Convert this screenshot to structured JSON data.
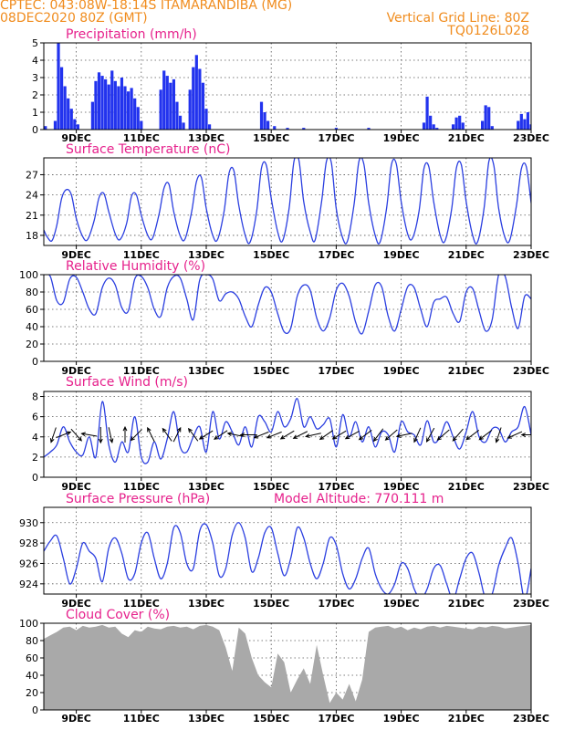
{
  "header": {
    "line1_left": "CPTEC:   043:08W-18:14S   ITAMARANDIBA (MG)",
    "line2_left": "08DEC2020 80Z (GMT)",
    "line1_right": "Vertical Grid Line: 80Z",
    "line2_right": "TQ0126L028"
  },
  "colors": {
    "header": "#f08c1e",
    "panel_title": "#e6218c",
    "series_line": "#2b3fe0",
    "precip_bar": "#2233ee",
    "cloud_fill": "#a9a9a9"
  },
  "x_axis": {
    "range_days": [
      0,
      15
    ],
    "tick_labels": [
      "9DEC",
      "11DEC",
      "13DEC",
      "15DEC",
      "17DEC",
      "19DEC",
      "21DEC",
      "23DEC"
    ],
    "tick_positions_days": [
      1,
      3,
      5,
      7,
      9,
      11,
      13,
      15
    ]
  },
  "chart_data": [
    {
      "id": "precip",
      "type": "bar",
      "title": "Precipitation (mm/h)",
      "ylim": [
        0,
        5
      ],
      "yticks": [
        0,
        1,
        2,
        3,
        4,
        5
      ],
      "color": "#2233ee",
      "x": [
        0.05,
        0.35,
        0.45,
        0.55,
        0.65,
        0.75,
        0.85,
        0.95,
        1.05,
        1.5,
        1.6,
        1.7,
        1.8,
        1.9,
        2.0,
        2.1,
        2.2,
        2.3,
        2.4,
        2.5,
        2.6,
        2.7,
        2.8,
        2.9,
        3.0,
        3.6,
        3.7,
        3.8,
        3.9,
        4.0,
        4.1,
        4.2,
        4.3,
        4.5,
        4.6,
        4.7,
        4.8,
        4.9,
        5.0,
        5.1,
        6.7,
        6.8,
        6.9,
        7.1,
        7.5,
        8.0,
        9.0,
        10.0,
        11.7,
        11.8,
        11.9,
        12.0,
        12.1,
        12.6,
        12.7,
        12.8,
        12.9,
        13.5,
        13.6,
        13.7,
        13.8,
        14.6,
        14.7,
        14.8,
        14.9,
        15.0
      ],
      "values": [
        0.2,
        0.5,
        5.0,
        3.6,
        2.5,
        1.8,
        1.2,
        0.6,
        0.3,
        1.6,
        2.8,
        3.3,
        3.1,
        2.9,
        2.6,
        3.4,
        2.8,
        2.5,
        3.0,
        2.5,
        2.2,
        2.4,
        1.8,
        1.3,
        0.5,
        2.3,
        3.4,
        3.1,
        2.7,
        2.9,
        1.6,
        0.8,
        0.4,
        2.3,
        3.6,
        4.3,
        3.5,
        2.7,
        1.2,
        0.3,
        1.6,
        1.0,
        0.5,
        0.2,
        0.1,
        0.1,
        0.1,
        0.1,
        0.4,
        1.9,
        0.8,
        0.3,
        0.1,
        0.3,
        0.7,
        0.8,
        0.4,
        0.5,
        1.4,
        1.3,
        0.2,
        0.5,
        0.9,
        0.6,
        1.0,
        0.3
      ]
    },
    {
      "id": "temperature",
      "type": "line",
      "title": "Surface Temperature (nC)",
      "ylim": [
        16.5,
        29.5
      ],
      "yticks": [
        18,
        21,
        24,
        27
      ],
      "color": "#2b3fe0",
      "x": [
        0.0,
        0.1,
        0.25,
        0.4,
        0.55,
        0.7,
        0.85,
        1.0,
        1.2,
        1.35,
        1.55,
        1.7,
        1.85,
        2.0,
        2.2,
        2.35,
        2.55,
        2.7,
        2.85,
        3.0,
        3.2,
        3.35,
        3.55,
        3.7,
        3.85,
        4.0,
        4.2,
        4.35,
        4.55,
        4.7,
        4.85,
        5.0,
        5.2,
        5.35,
        5.55,
        5.7,
        5.85,
        6.0,
        6.2,
        6.35,
        6.55,
        6.7,
        6.85,
        7.0,
        7.2,
        7.35,
        7.55,
        7.7,
        7.85,
        8.0,
        8.2,
        8.35,
        8.55,
        8.7,
        8.85,
        9.0,
        9.2,
        9.35,
        9.55,
        9.7,
        9.85,
        10.0,
        10.2,
        10.35,
        10.55,
        10.7,
        10.85,
        11.0,
        11.2,
        11.35,
        11.55,
        11.7,
        11.85,
        12.0,
        12.2,
        12.35,
        12.55,
        12.7,
        12.85,
        13.0,
        13.2,
        13.35,
        13.55,
        13.7,
        13.85,
        14.0,
        14.2,
        14.35,
        14.55,
        14.7,
        14.85,
        15.0
      ],
      "values": [
        18.8,
        17.8,
        17.2,
        19.5,
        23.5,
        24.8,
        24.0,
        20.5,
        17.8,
        17.4,
        20.2,
        23.6,
        24.2,
        21.5,
        18.2,
        17.4,
        19.8,
        23.8,
        24.0,
        21.0,
        18.0,
        17.6,
        21.2,
        25.0,
        25.6,
        21.5,
        17.9,
        17.5,
        21.5,
        26.0,
        26.6,
        22.0,
        18.0,
        17.4,
        21.6,
        27.2,
        27.6,
        22.5,
        18.0,
        17.0,
        21.5,
        28.0,
        28.4,
        23.5,
        18.5,
        17.2,
        22.0,
        29.0,
        29.2,
        23.0,
        18.5,
        17.3,
        23.0,
        29.0,
        28.8,
        22.0,
        17.6,
        17.2,
        22.6,
        29.0,
        28.6,
        22.8,
        18.0,
        17.0,
        22.0,
        28.5,
        28.6,
        23.0,
        18.2,
        17.6,
        21.6,
        27.9,
        28.2,
        23.0,
        18.0,
        17.2,
        21.8,
        28.0,
        28.5,
        23.0,
        18.0,
        17.0,
        22.0,
        29.0,
        28.4,
        22.0,
        17.6,
        17.4,
        22.5,
        27.9,
        28.2,
        22.8
      ]
    },
    {
      "id": "humidity",
      "type": "line",
      "title": "Relative Humidity (%)",
      "ylim": [
        0,
        100
      ],
      "yticks": [
        0,
        20,
        40,
        60,
        80,
        100
      ],
      "color": "#2b3fe0",
      "x": [
        0.0,
        0.2,
        0.4,
        0.6,
        0.8,
        1.0,
        1.2,
        1.4,
        1.6,
        1.8,
        2.0,
        2.2,
        2.4,
        2.6,
        2.8,
        3.0,
        3.2,
        3.4,
        3.6,
        3.8,
        4.0,
        4.2,
        4.4,
        4.6,
        4.8,
        5.0,
        5.2,
        5.4,
        5.6,
        5.8,
        6.0,
        6.2,
        6.4,
        6.6,
        6.8,
        7.0,
        7.2,
        7.4,
        7.6,
        7.8,
        8.0,
        8.2,
        8.4,
        8.6,
        8.8,
        9.0,
        9.2,
        9.4,
        9.6,
        9.8,
        10.0,
        10.2,
        10.4,
        10.6,
        10.8,
        11.0,
        11.2,
        11.4,
        11.6,
        11.8,
        12.0,
        12.2,
        12.4,
        12.6,
        12.8,
        13.0,
        13.2,
        13.4,
        13.6,
        13.8,
        14.0,
        14.2,
        14.4,
        14.6,
        14.8,
        15.0
      ],
      "values": [
        100,
        98,
        70,
        68,
        95,
        97,
        80,
        60,
        55,
        85,
        96,
        88,
        62,
        58,
        95,
        98,
        85,
        60,
        52,
        85,
        98,
        96,
        72,
        48,
        94,
        100,
        95,
        70,
        78,
        80,
        72,
        52,
        40,
        65,
        85,
        80,
        55,
        34,
        38,
        75,
        88,
        82,
        50,
        35,
        50,
        82,
        90,
        75,
        45,
        32,
        58,
        88,
        86,
        52,
        35,
        60,
        86,
        85,
        60,
        40,
        68,
        72,
        74,
        55,
        46,
        80,
        84,
        58,
        35,
        48,
        100,
        98,
        62,
        38,
        75,
        72
      ]
    },
    {
      "id": "wind",
      "type": "line",
      "title": "Surface Wind (m/s)",
      "ylim": [
        0,
        8.5
      ],
      "yticks": [
        0,
        2,
        4,
        6,
        8
      ],
      "color": "#2b3fe0",
      "x": [
        0.0,
        0.2,
        0.4,
        0.6,
        0.8,
        1.0,
        1.2,
        1.4,
        1.6,
        1.8,
        2.0,
        2.2,
        2.4,
        2.6,
        2.8,
        3.0,
        3.2,
        3.4,
        3.6,
        3.8,
        4.0,
        4.2,
        4.4,
        4.6,
        4.8,
        5.0,
        5.2,
        5.4,
        5.6,
        5.8,
        6.0,
        6.2,
        6.4,
        6.6,
        6.8,
        7.0,
        7.2,
        7.4,
        7.6,
        7.8,
        8.0,
        8.2,
        8.4,
        8.6,
        8.8,
        9.0,
        9.2,
        9.4,
        9.6,
        9.8,
        10.0,
        10.2,
        10.4,
        10.6,
        10.8,
        11.0,
        11.2,
        11.4,
        11.6,
        11.8,
        12.0,
        12.2,
        12.4,
        12.6,
        12.8,
        13.0,
        13.2,
        13.4,
        13.6,
        13.8,
        14.0,
        14.2,
        14.4,
        14.6,
        14.8,
        15.0
      ],
      "values": [
        2.0,
        2.5,
        3.2,
        5.0,
        3.5,
        2.5,
        2.2,
        4.0,
        2.0,
        7.5,
        3.2,
        1.5,
        3.5,
        2.5,
        6.0,
        2.0,
        1.5,
        3.5,
        1.8,
        3.8,
        6.5,
        3.0,
        2.5,
        4.0,
        5.0,
        2.5,
        6.5,
        3.8,
        5.5,
        4.5,
        3.2,
        5.0,
        3.0,
        6.0,
        5.5,
        4.5,
        6.5,
        5.0,
        5.8,
        7.8,
        5.0,
        6.0,
        4.8,
        5.2,
        5.8,
        3.0,
        6.2,
        4.0,
        5.5,
        3.5,
        5.0,
        3.0,
        4.5,
        4.2,
        2.5,
        5.5,
        4.5,
        4.2,
        3.2,
        5.6,
        3.5,
        4.0,
        5.5,
        4.0,
        2.8,
        4.5,
        6.5,
        4.0,
        3.5,
        4.8,
        4.8,
        3.5,
        4.5,
        5.0,
        7.0,
        4.2
      ],
      "wind_arrows": {
        "x": [
          0.3,
          0.6,
          1.0,
          1.4,
          1.75,
          2.05,
          2.5,
          2.85,
          3.3,
          3.8,
          4.1,
          4.6,
          5.0,
          5.45,
          5.9,
          6.3,
          6.7,
          7.1,
          7.5,
          7.9,
          8.3,
          8.7,
          9.1,
          9.5,
          9.9,
          10.3,
          10.7,
          11.1,
          11.5,
          11.9,
          12.3,
          12.75,
          13.2,
          13.6,
          14.0,
          14.5,
          14.95
        ],
        "u": [
          -0.3,
          0.5,
          0.8,
          -0.6,
          0.0,
          0.2,
          0.0,
          -0.7,
          -0.3,
          -0.5,
          0.4,
          -0.6,
          -0.8,
          -0.9,
          -1.0,
          -1.0,
          -1.0,
          -1.0,
          -1.0,
          -1.0,
          -0.9,
          -1.0,
          -1.0,
          -0.9,
          -0.8,
          -0.6,
          -0.8,
          -1.0,
          -0.4,
          -0.5,
          -0.7,
          -0.6,
          -0.8,
          -0.8,
          -0.3,
          -0.9,
          -1.0
        ],
        "v": [
          -0.9,
          0.2,
          -0.9,
          0.1,
          -1.0,
          -0.9,
          1.0,
          -0.7,
          0.6,
          0.7,
          0.8,
          0.8,
          -0.5,
          -0.6,
          0.2,
          0.0,
          -0.4,
          -0.4,
          -0.6,
          -0.5,
          -0.2,
          -0.7,
          -0.6,
          -0.5,
          -0.6,
          -0.8,
          -0.7,
          -0.2,
          -0.9,
          -0.9,
          -0.6,
          -0.7,
          -0.6,
          -0.6,
          -0.9,
          -0.4,
          0.0
        ]
      }
    },
    {
      "id": "pressure",
      "type": "line",
      "title": "Surface Pressure (hPa)",
      "annotation": "Model Altitude: 770.111 m",
      "ylim": [
        923.0,
        931.5
      ],
      "yticks": [
        924,
        926,
        928,
        930
      ],
      "color": "#2b3fe0",
      "x": [
        0.0,
        0.2,
        0.4,
        0.6,
        0.8,
        1.0,
        1.2,
        1.4,
        1.6,
        1.8,
        2.0,
        2.2,
        2.4,
        2.6,
        2.8,
        3.0,
        3.2,
        3.4,
        3.6,
        3.8,
        4.0,
        4.2,
        4.4,
        4.6,
        4.8,
        5.0,
        5.2,
        5.4,
        5.6,
        5.8,
        6.0,
        6.2,
        6.4,
        6.6,
        6.8,
        7.0,
        7.2,
        7.4,
        7.6,
        7.8,
        8.0,
        8.2,
        8.4,
        8.6,
        8.8,
        9.0,
        9.2,
        9.4,
        9.6,
        9.8,
        10.0,
        10.2,
        10.4,
        10.6,
        10.8,
        11.0,
        11.2,
        11.4,
        11.6,
        11.8,
        12.0,
        12.2,
        12.4,
        12.6,
        12.8,
        13.0,
        13.2,
        13.4,
        13.6,
        13.8,
        14.0,
        14.2,
        14.4,
        14.6,
        14.8,
        15.0
      ],
      "values": [
        927.2,
        928.2,
        928.7,
        926.5,
        924.0,
        925.5,
        928.0,
        927.2,
        926.5,
        924.2,
        927.5,
        928.5,
        927.0,
        924.5,
        925.0,
        928.0,
        929.0,
        926.5,
        924.5,
        926.0,
        929.5,
        929.0,
        926.0,
        925.5,
        929.2,
        929.8,
        928.0,
        924.8,
        925.5,
        928.8,
        930.0,
        928.5,
        925.2,
        926.5,
        929.0,
        929.5,
        927.0,
        924.8,
        926.5,
        929.5,
        928.5,
        926.0,
        924.5,
        926.0,
        928.5,
        927.8,
        925.0,
        923.5,
        924.5,
        926.5,
        927.5,
        925.0,
        923.5,
        923.0,
        924.0,
        926.0,
        925.5,
        923.5,
        922.5,
        923.5,
        925.5,
        925.8,
        924.0,
        922.5,
        924.5,
        926.5,
        927.0,
        925.0,
        922.5,
        923.0,
        925.8,
        927.5,
        928.5,
        926.0,
        922.5,
        925.5
      ]
    },
    {
      "id": "cloud",
      "type": "area",
      "title": "Cloud Cover (%)",
      "ylim": [
        0,
        100
      ],
      "yticks": [
        0,
        20,
        40,
        60,
        80,
        100
      ],
      "color": "#a9a9a9",
      "x": [
        0.0,
        0.2,
        0.4,
        0.6,
        0.8,
        1.0,
        1.2,
        1.4,
        1.6,
        1.8,
        2.0,
        2.2,
        2.4,
        2.6,
        2.8,
        3.0,
        3.2,
        3.4,
        3.6,
        3.8,
        4.0,
        4.2,
        4.4,
        4.6,
        4.8,
        5.0,
        5.2,
        5.4,
        5.6,
        5.8,
        6.0,
        6.2,
        6.4,
        6.6,
        6.8,
        7.0,
        7.2,
        7.4,
        7.6,
        7.8,
        8.0,
        8.2,
        8.4,
        8.6,
        8.8,
        9.0,
        9.2,
        9.4,
        9.6,
        9.8,
        10.0,
        10.2,
        10.4,
        10.6,
        10.8,
        11.0,
        11.2,
        11.4,
        11.6,
        11.8,
        12.0,
        12.2,
        12.4,
        12.6,
        12.8,
        13.0,
        13.2,
        13.4,
        13.6,
        13.8,
        14.0,
        14.2,
        14.4,
        14.6,
        14.8,
        15.0
      ],
      "values": [
        82,
        86,
        90,
        95,
        96,
        92,
        97,
        95,
        96,
        98,
        95,
        96,
        88,
        84,
        92,
        90,
        96,
        94,
        93,
        96,
        97,
        95,
        96,
        93,
        97,
        98,
        96,
        92,
        72,
        45,
        95,
        88,
        60,
        40,
        32,
        26,
        65,
        55,
        20,
        35,
        48,
        30,
        75,
        40,
        8,
        20,
        12,
        30,
        10,
        35,
        90,
        95,
        96,
        97,
        94,
        96,
        92,
        95,
        93,
        96,
        97,
        95,
        97,
        96,
        95,
        94,
        93,
        96,
        95,
        97,
        96,
        94,
        95,
        96,
        97,
        98
      ]
    }
  ]
}
